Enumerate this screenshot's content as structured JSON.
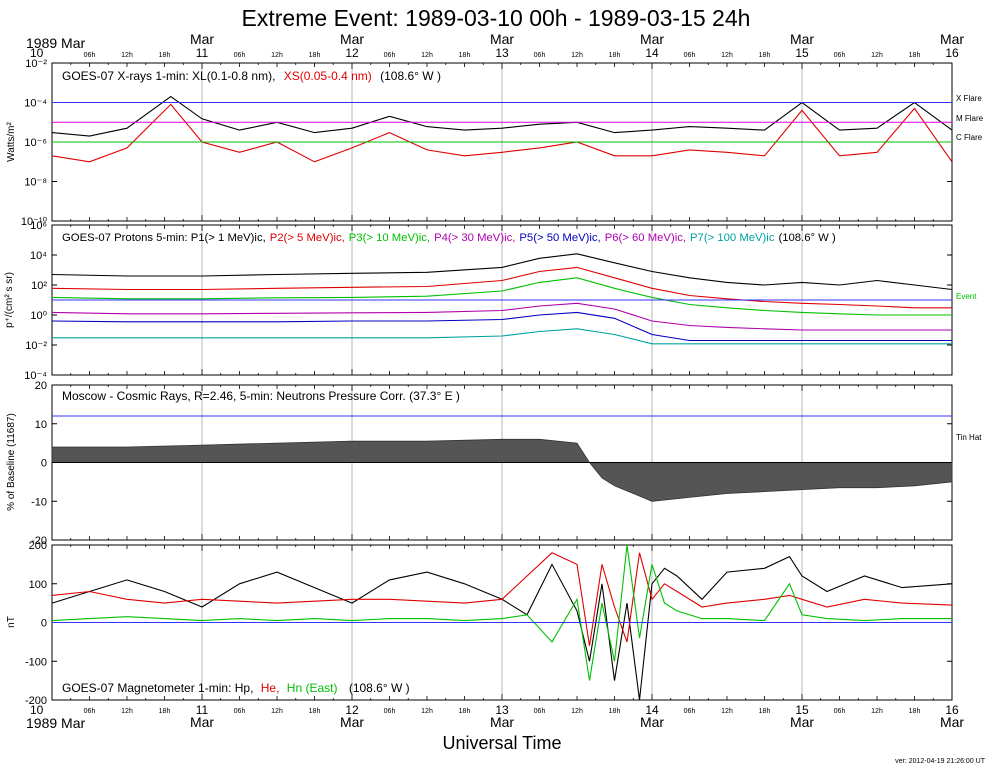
{
  "title": "Extreme Event: 1989-03-10 00h - 1989-03-15 24h",
  "version_text": "ver: 2012-04-19 21:26:00 UT",
  "colors": {
    "black": "#000000",
    "red": "#e00000",
    "green": "#00c000",
    "purple": "#b000b0",
    "blue": "#0000c0",
    "teal": "#00a0a0",
    "magenta": "#e000e0",
    "ref_blue": "#3030ff",
    "fill_gray": "#555555"
  },
  "time_axis": {
    "top_left_label": "1989 Mar",
    "bottom_left_label": "1989 Mar",
    "xlabel": "Universal Time",
    "days": [
      {
        "day": "10",
        "month": ""
      },
      {
        "day": "11",
        "month": "Mar"
      },
      {
        "day": "12",
        "month": "Mar"
      },
      {
        "day": "13",
        "month": "Mar"
      },
      {
        "day": "14",
        "month": "Mar"
      },
      {
        "day": "15",
        "month": "Mar"
      },
      {
        "day": "16",
        "month": "Mar"
      }
    ],
    "hour_labels": [
      "06h",
      "12h",
      "18h"
    ],
    "date_range_hours": [
      0,
      144
    ]
  },
  "panels": {
    "xray": {
      "legend_pre": "GOES-07 X-rays  1-min: XL(0.1-0.8 nm),",
      "legend_red": "XS(0.05-0.4 nm)",
      "legend_post": "(108.6° W )",
      "ylabel": "Watts/m²",
      "yticks": [
        "10⁻²",
        "10⁻⁴",
        "10⁻⁶",
        "10⁻⁸",
        "10⁻¹⁰"
      ],
      "refs": {
        "x": "X Flare",
        "m": "M Flare",
        "c": "C Flare"
      }
    },
    "proton": {
      "legend": [
        {
          "text": "GOES-07  Protons 5-min: P1(> 1 MeV)ic,",
          "color": "black"
        },
        {
          "text": "P2(> 5 MeV)ic,",
          "color": "red"
        },
        {
          "text": "P3(> 10 MeV)ic,",
          "color": "green"
        },
        {
          "text": "P4(> 30 MeV)ic,",
          "color": "purple"
        },
        {
          "text": "P5(> 50 MeV)ic,",
          "color": "blue"
        },
        {
          "text": "P6(> 60 MeV)ic,",
          "color": "purple"
        },
        {
          "text": "P7(> 100 MeV)ic",
          "color": "teal"
        },
        {
          "text": "(108.6° W )",
          "color": "black"
        }
      ],
      "ylabel": "p⁺/(cm² s sr)",
      "yticks": [
        "10⁶",
        "10⁴",
        "10²",
        "10⁰",
        "10⁻²",
        "10⁻⁴"
      ],
      "ref": "Event"
    },
    "cosmic": {
      "legend": "Moscow - Cosmic Rays, R=2.46,  5-min: Neutrons Pressure Corr.  (37.3° E )",
      "ylabel": "% of Baseline (11687)",
      "yticks": [
        "20",
        "10",
        "0",
        "-10",
        "-20"
      ],
      "ref": "Tin Hat"
    },
    "mag": {
      "legend_pre": "GOES-07 Magnetometer  1-min: Hp,",
      "legend_he": "He,",
      "legend_hn": "Hn (East)",
      "legend_post": "(108.6° W )",
      "ylabel": "nT",
      "yticks": [
        "200",
        "100",
        "0",
        "-100",
        "-200"
      ]
    }
  },
  "chart_data": [
    {
      "type": "line",
      "title": "GOES-07 X-rays  1-min: XL(0.1-0.8 nm), XS(0.05-0.4 nm)  (108.6° W )",
      "ylabel": "Watts/m²",
      "log_scale": true,
      "ylim": [
        1e-10,
        0.01
      ],
      "x_unit": "hours since 1989-03-10 00:00 UT",
      "x": [
        0,
        6,
        12,
        19,
        24,
        30,
        36,
        42,
        48,
        54,
        60,
        66,
        72,
        78,
        84,
        90,
        96,
        102,
        108,
        114,
        120,
        126,
        132,
        138,
        144
      ],
      "reference_lines": [
        {
          "label": "X Flare",
          "value": 0.0001
        },
        {
          "label": "M Flare",
          "value": 1e-05
        },
        {
          "label": "C Flare",
          "value": 1e-06
        }
      ],
      "series": [
        {
          "name": "XL(0.1-0.8 nm)",
          "color": "black",
          "values": [
            3e-06,
            2e-06,
            5e-06,
            0.0002,
            1.5e-05,
            4e-06,
            1e-05,
            3e-06,
            5e-06,
            2e-05,
            6e-06,
            4e-06,
            5e-06,
            8e-06,
            1e-05,
            3e-06,
            4e-06,
            6e-06,
            5e-06,
            4e-06,
            0.0001,
            4e-06,
            5e-06,
            0.0001,
            4e-06
          ]
        },
        {
          "name": "XS(0.05-0.4 nm)",
          "color": "red",
          "values": [
            2e-07,
            1e-07,
            5e-07,
            8e-05,
            1e-06,
            3e-07,
            1e-06,
            1e-07,
            5e-07,
            3e-06,
            4e-07,
            2e-07,
            3e-07,
            5e-07,
            1e-06,
            2e-07,
            2e-07,
            4e-07,
            3e-07,
            2e-07,
            4e-05,
            2e-07,
            3e-07,
            5e-05,
            1e-07
          ]
        }
      ]
    },
    {
      "type": "line",
      "title": "GOES-07  Protons 5-min  (108.6° W )",
      "ylabel": "p⁺/(cm² s sr)",
      "log_scale": true,
      "ylim": [
        0.0001,
        1000000.0
      ],
      "x_unit": "hours since 1989-03-10 00:00 UT",
      "x": [
        0,
        12,
        24,
        36,
        48,
        60,
        72,
        78,
        84,
        90,
        96,
        102,
        108,
        114,
        120,
        126,
        132,
        138,
        144
      ],
      "reference_lines": [
        {
          "label": "Event",
          "value": 10
        }
      ],
      "series": [
        {
          "name": "P1(> 1 MeV)ic",
          "color": "black",
          "values": [
            500,
            400,
            400,
            500,
            600,
            700,
            1500,
            6000,
            12000,
            3000,
            800,
            300,
            150,
            100,
            150,
            100,
            200,
            100,
            50
          ]
        },
        {
          "name": "P2(> 5 MeV)ic",
          "color": "red",
          "values": [
            60,
            50,
            50,
            60,
            70,
            80,
            200,
            800,
            1500,
            300,
            60,
            20,
            12,
            8,
            6,
            5,
            4,
            3,
            3
          ]
        },
        {
          "name": "P3(> 10 MeV)ic",
          "color": "green",
          "values": [
            15,
            12,
            12,
            14,
            15,
            18,
            40,
            150,
            300,
            60,
            15,
            5,
            3,
            2,
            1.5,
            1.2,
            1,
            1,
            1
          ]
        },
        {
          "name": "P4(> 30 MeV)ic",
          "color": "purple",
          "values": [
            1.5,
            1.2,
            1.2,
            1.3,
            1.4,
            1.5,
            2,
            4,
            6,
            2.5,
            0.4,
            0.2,
            0.15,
            0.12,
            0.1,
            0.1,
            0.1,
            0.1,
            0.1
          ]
        },
        {
          "name": "P5(> 50 MeV)ic",
          "color": "blue",
          "values": [
            0.4,
            0.35,
            0.35,
            0.35,
            0.4,
            0.4,
            0.5,
            1,
            1.5,
            0.6,
            0.05,
            0.02,
            0.02,
            0.02,
            0.02,
            0.02,
            0.02,
            0.02,
            0.02
          ]
        },
        {
          "name": "P7(> 100 MeV)ic",
          "color": "teal",
          "values": [
            0.03,
            0.03,
            0.03,
            0.03,
            0.03,
            0.03,
            0.04,
            0.08,
            0.12,
            0.05,
            0.012,
            0.012,
            0.012,
            0.012,
            0.012,
            0.012,
            0.012,
            0.012,
            0.012
          ]
        }
      ]
    },
    {
      "type": "area",
      "title": "Moscow - Cosmic Rays, R=2.46,  5-min: Neutrons Pressure Corr.  (37.3° E )",
      "ylabel": "% of Baseline (11687)",
      "ylim": [
        -20,
        20
      ],
      "x_unit": "hours since 1989-03-10 00:00 UT",
      "reference_lines": [
        {
          "label": "Tin Hat",
          "value": 12
        }
      ],
      "x": [
        0,
        12,
        24,
        36,
        48,
        60,
        72,
        78,
        84,
        86,
        88,
        90,
        93,
        96,
        102,
        108,
        114,
        120,
        126,
        132,
        138,
        144
      ],
      "values": [
        4,
        4,
        4.5,
        5,
        5.5,
        5.5,
        6,
        6,
        5,
        0,
        -4,
        -6,
        -8,
        -10,
        -9,
        -8,
        -7.5,
        -7,
        -6.5,
        -6.5,
        -6,
        -5
      ]
    },
    {
      "type": "line",
      "title": "GOES-07 Magnetometer  1-min: Hp, He, Hn (East)  (108.6° W )",
      "ylabel": "nT",
      "ylim": [
        -200,
        200
      ],
      "x_unit": "hours since 1989-03-10 00:00 UT",
      "x": [
        0,
        6,
        12,
        18,
        24,
        30,
        36,
        42,
        48,
        54,
        60,
        66,
        72,
        76,
        80,
        84,
        86,
        88,
        90,
        92,
        94,
        96,
        98,
        100,
        104,
        108,
        114,
        118,
        120,
        124,
        130,
        136,
        144
      ],
      "series": [
        {
          "name": "Hp",
          "color": "black",
          "values": [
            50,
            80,
            110,
            80,
            40,
            100,
            130,
            90,
            50,
            110,
            130,
            100,
            60,
            20,
            150,
            30,
            -100,
            100,
            -150,
            50,
            -200,
            100,
            140,
            120,
            60,
            130,
            140,
            170,
            120,
            80,
            120,
            90,
            100
          ]
        },
        {
          "name": "He",
          "color": "red",
          "values": [
            70,
            80,
            60,
            50,
            60,
            55,
            50,
            55,
            60,
            60,
            55,
            50,
            60,
            120,
            180,
            150,
            -60,
            150,
            40,
            -50,
            180,
            60,
            100,
            80,
            40,
            50,
            60,
            70,
            60,
            40,
            60,
            50,
            45
          ]
        },
        {
          "name": "Hn (East)",
          "color": "green",
          "values": [
            5,
            10,
            15,
            10,
            5,
            10,
            5,
            10,
            5,
            10,
            10,
            5,
            10,
            20,
            -50,
            60,
            -150,
            50,
            -100,
            200,
            -40,
            150,
            50,
            30,
            10,
            10,
            5,
            100,
            20,
            10,
            5,
            10,
            10
          ]
        }
      ]
    }
  ]
}
